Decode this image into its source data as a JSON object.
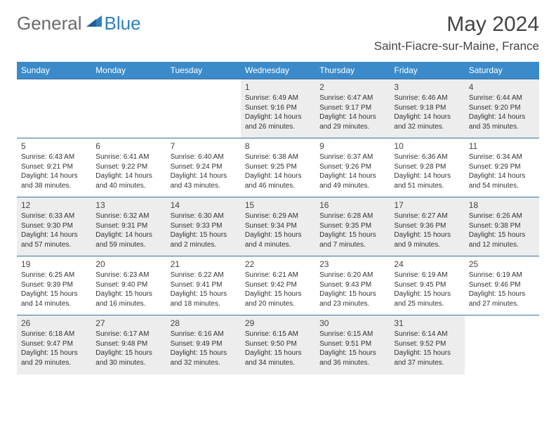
{
  "logo": {
    "text1": "General",
    "text2": "Blue"
  },
  "title": "May 2024",
  "location": "Saint-Fiacre-sur-Maine, France",
  "colors": {
    "header_bg": "#3b8bca",
    "header_text": "#ffffff",
    "cell_border": "#3b6fa0",
    "alt_bg": "#ededed",
    "text": "#333333",
    "logo_gray": "#6a6a6a",
    "logo_blue": "#2f7fbf"
  },
  "dayHeaders": [
    "Sunday",
    "Monday",
    "Tuesday",
    "Wednesday",
    "Thursday",
    "Friday",
    "Saturday"
  ],
  "weeks": [
    [
      {
        "empty": true
      },
      {
        "empty": true
      },
      {
        "empty": true
      },
      {
        "day": "1",
        "sunrise": "6:49 AM",
        "sunset": "9:16 PM",
        "daylight": "Daylight: 14 hours and 26 minutes."
      },
      {
        "day": "2",
        "sunrise": "6:47 AM",
        "sunset": "9:17 PM",
        "daylight": "Daylight: 14 hours and 29 minutes."
      },
      {
        "day": "3",
        "sunrise": "6:46 AM",
        "sunset": "9:18 PM",
        "daylight": "Daylight: 14 hours and 32 minutes."
      },
      {
        "day": "4",
        "sunrise": "6:44 AM",
        "sunset": "9:20 PM",
        "daylight": "Daylight: 14 hours and 35 minutes."
      }
    ],
    [
      {
        "day": "5",
        "sunrise": "6:43 AM",
        "sunset": "9:21 PM",
        "daylight": "Daylight: 14 hours and 38 minutes."
      },
      {
        "day": "6",
        "sunrise": "6:41 AM",
        "sunset": "9:22 PM",
        "daylight": "Daylight: 14 hours and 40 minutes."
      },
      {
        "day": "7",
        "sunrise": "6:40 AM",
        "sunset": "9:24 PM",
        "daylight": "Daylight: 14 hours and 43 minutes."
      },
      {
        "day": "8",
        "sunrise": "6:38 AM",
        "sunset": "9:25 PM",
        "daylight": "Daylight: 14 hours and 46 minutes."
      },
      {
        "day": "9",
        "sunrise": "6:37 AM",
        "sunset": "9:26 PM",
        "daylight": "Daylight: 14 hours and 49 minutes."
      },
      {
        "day": "10",
        "sunrise": "6:36 AM",
        "sunset": "9:28 PM",
        "daylight": "Daylight: 14 hours and 51 minutes."
      },
      {
        "day": "11",
        "sunrise": "6:34 AM",
        "sunset": "9:29 PM",
        "daylight": "Daylight: 14 hours and 54 minutes."
      }
    ],
    [
      {
        "day": "12",
        "sunrise": "6:33 AM",
        "sunset": "9:30 PM",
        "daylight": "Daylight: 14 hours and 57 minutes."
      },
      {
        "day": "13",
        "sunrise": "6:32 AM",
        "sunset": "9:31 PM",
        "daylight": "Daylight: 14 hours and 59 minutes."
      },
      {
        "day": "14",
        "sunrise": "6:30 AM",
        "sunset": "9:33 PM",
        "daylight": "Daylight: 15 hours and 2 minutes."
      },
      {
        "day": "15",
        "sunrise": "6:29 AM",
        "sunset": "9:34 PM",
        "daylight": "Daylight: 15 hours and 4 minutes."
      },
      {
        "day": "16",
        "sunrise": "6:28 AM",
        "sunset": "9:35 PM",
        "daylight": "Daylight: 15 hours and 7 minutes."
      },
      {
        "day": "17",
        "sunrise": "6:27 AM",
        "sunset": "9:36 PM",
        "daylight": "Daylight: 15 hours and 9 minutes."
      },
      {
        "day": "18",
        "sunrise": "6:26 AM",
        "sunset": "9:38 PM",
        "daylight": "Daylight: 15 hours and 12 minutes."
      }
    ],
    [
      {
        "day": "19",
        "sunrise": "6:25 AM",
        "sunset": "9:39 PM",
        "daylight": "Daylight: 15 hours and 14 minutes."
      },
      {
        "day": "20",
        "sunrise": "6:23 AM",
        "sunset": "9:40 PM",
        "daylight": "Daylight: 15 hours and 16 minutes."
      },
      {
        "day": "21",
        "sunrise": "6:22 AM",
        "sunset": "9:41 PM",
        "daylight": "Daylight: 15 hours and 18 minutes."
      },
      {
        "day": "22",
        "sunrise": "6:21 AM",
        "sunset": "9:42 PM",
        "daylight": "Daylight: 15 hours and 20 minutes."
      },
      {
        "day": "23",
        "sunrise": "6:20 AM",
        "sunset": "9:43 PM",
        "daylight": "Daylight: 15 hours and 23 minutes."
      },
      {
        "day": "24",
        "sunrise": "6:19 AM",
        "sunset": "9:45 PM",
        "daylight": "Daylight: 15 hours and 25 minutes."
      },
      {
        "day": "25",
        "sunrise": "6:19 AM",
        "sunset": "9:46 PM",
        "daylight": "Daylight: 15 hours and 27 minutes."
      }
    ],
    [
      {
        "day": "26",
        "sunrise": "6:18 AM",
        "sunset": "9:47 PM",
        "daylight": "Daylight: 15 hours and 29 minutes."
      },
      {
        "day": "27",
        "sunrise": "6:17 AM",
        "sunset": "9:48 PM",
        "daylight": "Daylight: 15 hours and 30 minutes."
      },
      {
        "day": "28",
        "sunrise": "6:16 AM",
        "sunset": "9:49 PM",
        "daylight": "Daylight: 15 hours and 32 minutes."
      },
      {
        "day": "29",
        "sunrise": "6:15 AM",
        "sunset": "9:50 PM",
        "daylight": "Daylight: 15 hours and 34 minutes."
      },
      {
        "day": "30",
        "sunrise": "6:15 AM",
        "sunset": "9:51 PM",
        "daylight": "Daylight: 15 hours and 36 minutes."
      },
      {
        "day": "31",
        "sunrise": "6:14 AM",
        "sunset": "9:52 PM",
        "daylight": "Daylight: 15 hours and 37 minutes."
      },
      {
        "empty": true
      }
    ]
  ]
}
